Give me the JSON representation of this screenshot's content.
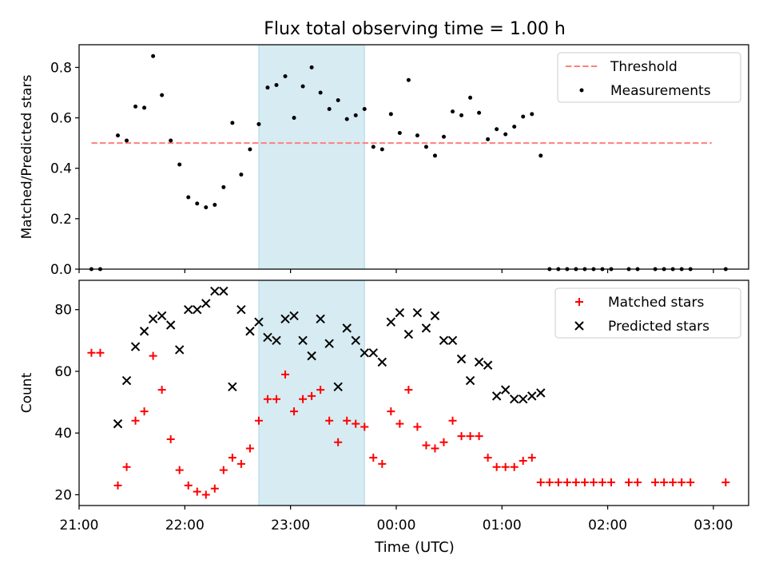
{
  "figure": {
    "title": "Flux total observing time = 1.00 h",
    "xlabel": "Time (UTC)"
  },
  "chart_data": [
    {
      "type": "scatter",
      "ylabel": "Matched/Predicted stars",
      "ylim": [
        0,
        0.89
      ],
      "yticks": [
        "0.0",
        "0.2",
        "0.4",
        "0.6",
        "0.8"
      ],
      "xlim": [
        "21:00",
        "03:20"
      ],
      "highlight_span": {
        "x0": "22:42",
        "x1": "23:42",
        "color": "#add8e6"
      },
      "legend_position": "upper right",
      "series": [
        {
          "name": "Threshold",
          "kind": "dashed-line",
          "color": "#ff7f7f",
          "x": [
            "21:07",
            "23:35",
            "02:59"
          ],
          "y": [
            0.5,
            0.5,
            0.5
          ]
        },
        {
          "name": "Measurements",
          "kind": "dot",
          "color": "#000000",
          "x": [
            "21:07",
            "21:12",
            "21:22",
            "21:27",
            "21:32",
            "21:37",
            "21:42",
            "21:47",
            "21:52",
            "21:57",
            "22:02",
            "22:07",
            "22:12",
            "22:17",
            "22:22",
            "22:27",
            "22:32",
            "22:37",
            "22:42",
            "22:47",
            "22:52",
            "22:57",
            "23:02",
            "23:07",
            "23:12",
            "23:17",
            "23:22",
            "23:27",
            "23:32",
            "23:37",
            "23:42",
            "23:47",
            "23:52",
            "23:57",
            "00:02",
            "00:07",
            "00:12",
            "00:17",
            "00:22",
            "00:27",
            "00:32",
            "00:37",
            "00:42",
            "00:47",
            "00:52",
            "00:57",
            "01:02",
            "01:07",
            "01:12",
            "01:17",
            "01:22",
            "01:27",
            "01:32",
            "01:37",
            "01:42",
            "01:47",
            "01:52",
            "01:57",
            "02:02",
            "02:12",
            "02:17",
            "02:27",
            "02:32",
            "02:37",
            "02:42",
            "02:47",
            "03:07"
          ],
          "y": [
            0,
            0,
            0.53,
            0.51,
            0.645,
            0.64,
            0.845,
            0.69,
            0.51,
            0.415,
            0.285,
            0.26,
            0.245,
            0.255,
            0.325,
            0.58,
            0.375,
            0.475,
            0.575,
            0.72,
            0.73,
            0.765,
            0.6,
            0.725,
            0.8,
            0.7,
            0.635,
            0.67,
            0.595,
            0.61,
            0.635,
            0.485,
            0.475,
            0.615,
            0.54,
            0.75,
            0.53,
            0.485,
            0.45,
            0.525,
            0.625,
            0.61,
            0.68,
            0.62,
            0.515,
            0.555,
            0.535,
            0.565,
            0.605,
            0.615,
            0.45,
            0,
            0,
            0,
            0,
            0,
            0,
            0,
            0,
            0,
            0,
            0,
            0,
            0,
            0,
            0,
            0
          ]
        }
      ]
    },
    {
      "type": "scatter",
      "ylabel": "Count",
      "ylim": [
        16.5,
        89.5
      ],
      "yticks": [
        "20",
        "40",
        "60",
        "80"
      ],
      "xlim": [
        "21:00",
        "03:20"
      ],
      "xticks": [
        "21:00",
        "22:00",
        "23:00",
        "00:00",
        "01:00",
        "02:00",
        "03:00"
      ],
      "highlight_span": {
        "x0": "22:42",
        "x1": "23:42",
        "color": "#add8e6"
      },
      "legend_position": "upper right",
      "series": [
        {
          "name": "Matched stars",
          "kind": "plus",
          "color": "#ff0000",
          "x": [
            "21:07",
            "21:12",
            "21:22",
            "21:27",
            "21:32",
            "21:37",
            "21:42",
            "21:47",
            "21:52",
            "21:57",
            "22:02",
            "22:07",
            "22:12",
            "22:17",
            "22:22",
            "22:27",
            "22:32",
            "22:37",
            "22:42",
            "22:47",
            "22:52",
            "22:57",
            "23:02",
            "23:07",
            "23:12",
            "23:17",
            "23:22",
            "23:27",
            "23:32",
            "23:37",
            "23:42",
            "23:47",
            "23:52",
            "23:57",
            "00:02",
            "00:07",
            "00:12",
            "00:17",
            "00:22",
            "00:27",
            "00:32",
            "00:37",
            "00:42",
            "00:47",
            "00:52",
            "00:57",
            "01:02",
            "01:07",
            "01:12",
            "01:17",
            "01:22",
            "01:27",
            "01:32",
            "01:37",
            "01:42",
            "01:47",
            "01:52",
            "01:57",
            "02:02",
            "02:12",
            "02:17",
            "02:27",
            "02:32",
            "02:37",
            "02:42",
            "02:47",
            "03:07"
          ],
          "y": [
            66,
            66,
            23,
            29,
            44,
            47,
            65,
            54,
            38,
            28,
            23,
            21,
            20,
            22,
            28,
            32,
            30,
            35,
            44,
            51,
            51,
            59,
            47,
            51,
            52,
            54,
            44,
            37,
            44,
            43,
            42,
            32,
            30,
            47,
            43,
            54,
            42,
            36,
            35,
            37,
            44,
            39,
            39,
            39,
            32,
            29,
            29,
            29,
            31,
            32,
            24,
            24,
            24,
            24,
            24,
            24,
            24,
            24,
            24,
            24,
            24,
            24,
            24,
            24,
            24,
            24,
            24
          ]
        },
        {
          "name": "Predicted stars",
          "kind": "cross",
          "color": "#000000",
          "x": [
            "21:22",
            "21:27",
            "21:32",
            "21:37",
            "21:42",
            "21:47",
            "21:52",
            "21:57",
            "22:02",
            "22:07",
            "22:12",
            "22:17",
            "22:22",
            "22:27",
            "22:32",
            "22:37",
            "22:42",
            "22:47",
            "22:52",
            "22:57",
            "23:02",
            "23:07",
            "23:12",
            "23:17",
            "23:22",
            "23:27",
            "23:32",
            "23:37",
            "23:42",
            "23:47",
            "23:52",
            "23:57",
            "00:02",
            "00:07",
            "00:12",
            "00:17",
            "00:22",
            "00:27",
            "00:32",
            "00:37",
            "00:42",
            "00:47",
            "00:52",
            "00:57",
            "01:02",
            "01:07",
            "01:12",
            "01:17",
            "01:22"
          ],
          "y": [
            43,
            57,
            68,
            73,
            77,
            78,
            75,
            67,
            80,
            80,
            82,
            86,
            86,
            55,
            80,
            73,
            76,
            71,
            70,
            77,
            78,
            70,
            65,
            77,
            69,
            55,
            74,
            70,
            66,
            66,
            63,
            76,
            79,
            72,
            79,
            74,
            78,
            70,
            70,
            64,
            57,
            63,
            62,
            52,
            54,
            51,
            51,
            52,
            53
          ]
        }
      ]
    }
  ]
}
